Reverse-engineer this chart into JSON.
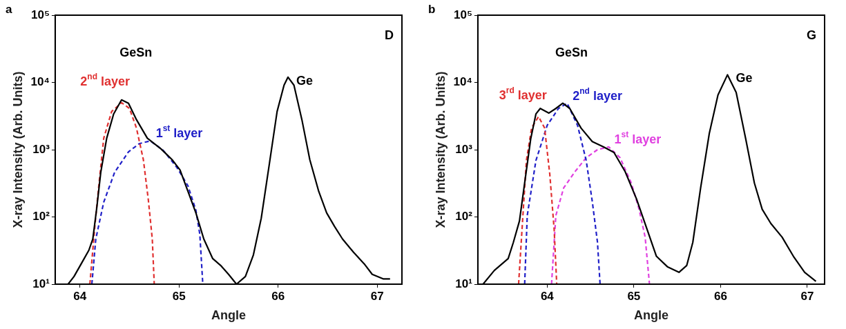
{
  "chart_data": [
    {
      "type": "line",
      "xlabel": "Angle",
      "ylabel": "X-ray Intensity (Arb. Units)",
      "xlim": [
        63.75,
        67.25
      ],
      "xticks": [
        64,
        65,
        66,
        67
      ],
      "ylim": [
        10,
        100000
      ],
      "yticks": [
        {
          "value": 10,
          "label": "10¹"
        },
        {
          "value": 100,
          "label": "10²"
        },
        {
          "value": 1000,
          "label": "10³"
        },
        {
          "value": 10000,
          "label": "10⁴"
        },
        {
          "value": 100000,
          "label": "10⁵"
        }
      ],
      "log": "y",
      "marker": "none",
      "annotations": [
        "a",
        "D",
        "GeSn",
        "Ge"
      ],
      "series": [
        {
          "color": "#000000",
          "line_style": "solid",
          "x": [
            63.88,
            63.94,
            64.02,
            64.09,
            64.13,
            64.17,
            64.21,
            64.27,
            64.34,
            64.42,
            64.49,
            64.57,
            64.68,
            64.82,
            64.93,
            65.01,
            65.09,
            65.17,
            65.25,
            65.34,
            65.42,
            65.5,
            65.58,
            65.67,
            65.75,
            65.83,
            65.91,
            65.99,
            66.06,
            66.1,
            66.16,
            66.24,
            66.32,
            66.41,
            66.49,
            66.57,
            66.65,
            66.76,
            66.87,
            66.95,
            67.06,
            67.13
          ],
          "values": [
            10,
            13,
            21,
            32,
            47,
            138,
            460,
            1480,
            3400,
            5500,
            4900,
            2800,
            1480,
            1020,
            710,
            500,
            240,
            115,
            47,
            24,
            19,
            14,
            10,
            13,
            27,
            96,
            590,
            3700,
            9100,
            12000,
            9100,
            2800,
            710,
            240,
            115,
            72,
            47,
            30,
            20,
            14,
            12,
            12
          ]
        },
        {
          "name": "2$^{nd}$ layer",
          "color": "#e03030",
          "line_style": "dashed",
          "x": [
            64.1,
            64.15,
            64.19,
            64.24,
            64.32,
            64.42,
            64.5,
            64.57,
            64.64,
            64.69,
            64.73,
            64.75
          ],
          "values": [
            10,
            72,
            290,
            1480,
            3700,
            5000,
            4100,
            2100,
            710,
            180,
            47,
            10
          ]
        },
        {
          "name": "1$^{st}$ layer",
          "color": "#2020c8",
          "line_style": "dashed",
          "x": [
            64.12,
            64.16,
            64.24,
            64.35,
            64.49,
            64.6,
            64.71,
            64.84,
            64.98,
            65.09,
            65.17,
            65.21,
            65.24
          ],
          "values": [
            10,
            47,
            166,
            460,
            930,
            1230,
            1350,
            980,
            540,
            290,
            126,
            55,
            10
          ]
        }
      ]
    },
    {
      "type": "line",
      "xlabel": "Angle",
      "ylabel": "X-ray Intensity (Arb. Units)",
      "xlim": [
        63.2,
        67.2
      ],
      "xticks": [
        64,
        65,
        66,
        67
      ],
      "ylim": [
        10,
        100000
      ],
      "yticks": [
        {
          "value": 10,
          "label": "10¹"
        },
        {
          "value": 100,
          "label": "10²"
        },
        {
          "value": 1000,
          "label": "10³"
        },
        {
          "value": 10000,
          "label": "10⁴"
        },
        {
          "value": 100000,
          "label": "10⁵"
        }
      ],
      "log": "y",
      "marker": "none",
      "annotations": [
        "b",
        "G",
        "GeSn",
        "Ge"
      ],
      "series": [
        {
          "color": "#000000",
          "line_style": "solid",
          "x": [
            63.26,
            63.39,
            63.55,
            63.61,
            63.68,
            63.74,
            63.81,
            63.87,
            63.92,
            64.02,
            64.1,
            64.18,
            64.26,
            64.39,
            64.52,
            64.65,
            64.77,
            64.9,
            65.03,
            65.16,
            65.26,
            65.39,
            65.52,
            65.61,
            65.68,
            65.77,
            65.87,
            65.97,
            66.08,
            66.18,
            66.29,
            66.39,
            66.48,
            66.58,
            66.71,
            66.84,
            66.97,
            67.1
          ],
          "values": [
            10,
            16,
            24,
            42,
            87,
            320,
            1450,
            3400,
            4100,
            3500,
            4100,
            4900,
            4100,
            2100,
            1320,
            1100,
            910,
            470,
            185,
            61,
            26,
            18,
            15,
            19,
            42,
            270,
            1740,
            6500,
            13000,
            7100,
            1450,
            320,
            130,
            80,
            50,
            26,
            15,
            11
          ]
        },
        {
          "name": "3$^{rd}$ layer",
          "color": "#e03030",
          "line_style": "dashed",
          "x": [
            63.67,
            63.71,
            63.76,
            63.82,
            63.9,
            63.97,
            64.03,
            64.08,
            64.11
          ],
          "values": [
            10,
            66,
            690,
            2100,
            3100,
            2100,
            430,
            66,
            10
          ]
        },
        {
          "name": "2$^{nd}$ layer",
          "color": "#2020c8",
          "line_style": "dashed",
          "x": [
            63.74,
            63.77,
            63.87,
            64.0,
            64.13,
            64.23,
            64.35,
            64.45,
            64.52,
            64.58,
            64.61
          ],
          "values": [
            10,
            105,
            690,
            2300,
            4100,
            4900,
            2300,
            690,
            170,
            42,
            10
          ]
        },
        {
          "name": "1$^{st}$ layer",
          "color": "#e040e0",
          "line_style": "dashed",
          "x": [
            64.05,
            64.1,
            64.19,
            64.32,
            64.45,
            64.58,
            64.71,
            64.84,
            64.97,
            65.06,
            65.13,
            65.18
          ],
          "values": [
            10,
            105,
            270,
            470,
            760,
            1000,
            1100,
            760,
            320,
            130,
            50,
            10
          ]
        }
      ]
    }
  ]
}
